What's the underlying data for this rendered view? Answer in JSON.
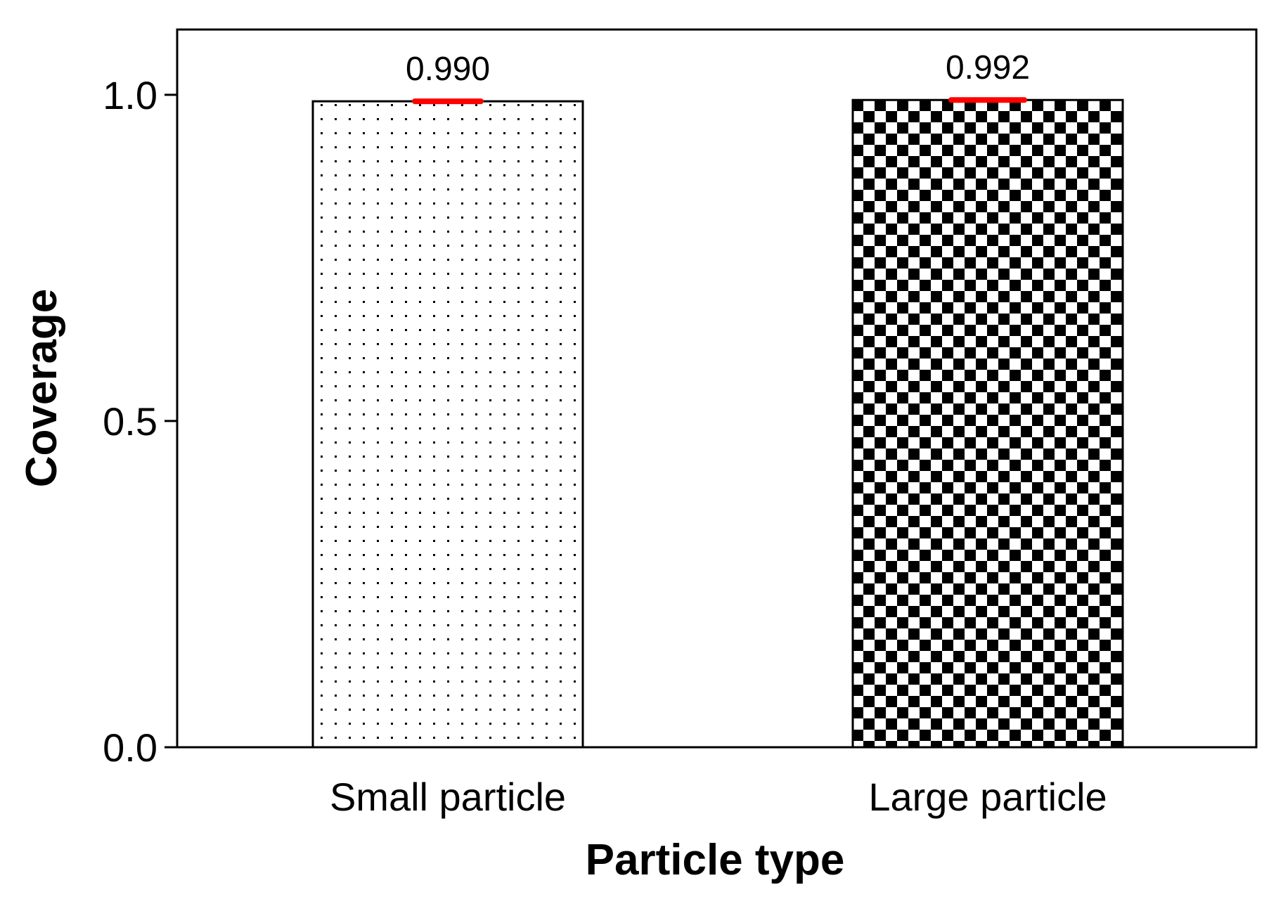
{
  "chart_data": {
    "type": "bar",
    "title": "",
    "xlabel": "Particle type",
    "ylabel": "Coverage",
    "categories": [
      "Small particle",
      "Large particle"
    ],
    "values": [
      0.99,
      0.992
    ],
    "data_labels": [
      "0.990",
      "0.992"
    ],
    "error_bars": [
      0.002,
      0.004
    ],
    "bar_patterns": [
      "dots",
      "checker"
    ],
    "ylim": [
      0,
      1.1
    ],
    "yticks": [
      0.0,
      0.5,
      1.0
    ],
    "ytick_labels": [
      "0.0",
      "0.5",
      "1.0"
    ],
    "grid": false,
    "colors": {
      "error_bar": "#ff0000",
      "bar_outline": "#000000",
      "checker_dark": "#000000",
      "checker_light": "#ffffff"
    }
  }
}
